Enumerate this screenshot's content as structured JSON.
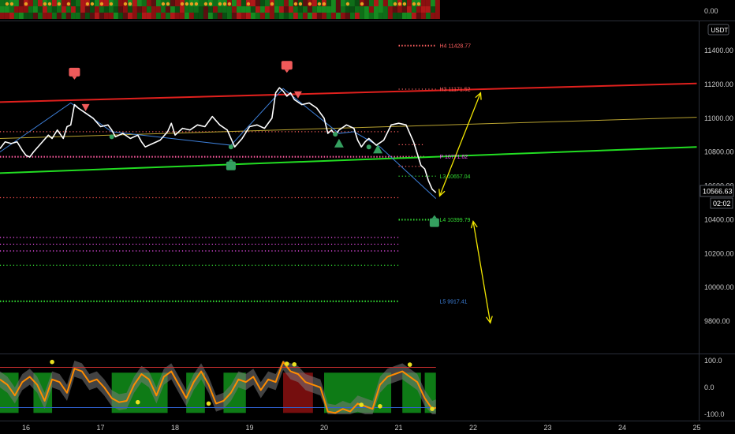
{
  "colors": {
    "background": "#000000",
    "price_line": "#ffffff",
    "zigzag": "#3d7fd9",
    "channel_upper": "#e0201d",
    "channel_lower": "#22dd22",
    "channel_mid": "#b8a230",
    "projection": "#f2e600",
    "oscillator": "#ff8c00",
    "osc_band": "#7a7a7a",
    "bull_zone": "#10901a",
    "bear_zone": "#8a1010",
    "sell_marker": "#f05a5a",
    "buy_marker": "#35a060"
  },
  "header": {
    "unit_badge": "USDT"
  },
  "current_price": {
    "value": "10566.63",
    "countdown": "02:02"
  },
  "chart_data": [
    {
      "type": "line",
      "pane": "price",
      "x_tick_labels": [
        "16",
        "17",
        "18",
        "19",
        "20",
        "21",
        "22",
        "23",
        "24",
        "25"
      ],
      "x_ticks": [
        16,
        17,
        18,
        19,
        20,
        21,
        22,
        23,
        24,
        25
      ],
      "xlim": [
        15.65,
        25.0
      ],
      "y_tick_labels": [
        "11400.00",
        "11200.00",
        "11000.00",
        "10800.00",
        "10600.00",
        "10400.00",
        "10200.00",
        "10000.00",
        "9800.00"
      ],
      "y_ticks": [
        11400,
        11200,
        11000,
        10800,
        10600,
        10400,
        10200,
        10000,
        9800
      ],
      "ylim": [
        9660,
        11550
      ],
      "grid": false,
      "series": [
        {
          "x": [
            15.65,
            15.72,
            15.8,
            15.88,
            15.95,
            16.0,
            16.05,
            16.1,
            16.2,
            16.3,
            16.35,
            16.42,
            16.5,
            16.55,
            16.6,
            16.65,
            16.7,
            16.8,
            16.9,
            17.0,
            17.1,
            17.15,
            17.2,
            17.3,
            17.4,
            17.5,
            17.55,
            17.6,
            17.7,
            17.8,
            17.9,
            17.95,
            18.0,
            18.1,
            18.2,
            18.3,
            18.4,
            18.5,
            18.6,
            18.7,
            18.75,
            18.8,
            18.9,
            19.0,
            19.1,
            19.2,
            19.3,
            19.35,
            19.4,
            19.45,
            19.5,
            19.55,
            19.6,
            19.7,
            19.8,
            19.9,
            20.0,
            20.05,
            20.1,
            20.15,
            20.2,
            20.3,
            20.4,
            20.45,
            20.5,
            20.55,
            20.6,
            20.7,
            20.8,
            20.9,
            21.0,
            21.1,
            21.2,
            21.3,
            21.35,
            21.4,
            21.45,
            21.5
          ],
          "y": [
            10820,
            10860,
            10850,
            10860,
            10810,
            10780,
            10770,
            10800,
            10850,
            10900,
            10880,
            10930,
            10880,
            10950,
            10960,
            11080,
            11060,
            11030,
            11000,
            10950,
            10960,
            10930,
            10890,
            10910,
            10880,
            10900,
            10860,
            10830,
            10850,
            10870,
            10920,
            10970,
            10900,
            10940,
            10930,
            10960,
            10950,
            11010,
            10960,
            10930,
            10880,
            10830,
            10880,
            10950,
            10960,
            10940,
            11000,
            11150,
            11180,
            11160,
            11130,
            11150,
            11110,
            11080,
            11090,
            11060,
            11000,
            10910,
            10930,
            10900,
            10930,
            10960,
            10940,
            10870,
            10830,
            10860,
            10880,
            10840,
            10870,
            10960,
            10970,
            10960,
            10860,
            10720,
            10700,
            10630,
            10580,
            10560
          ],
          "color_key": "price_line"
        }
      ],
      "lines": [
        {
          "name": "upper_channel",
          "x": [
            15.65,
            25.0
          ],
          "y": [
            11095,
            11205
          ],
          "color_key": "channel_upper"
        },
        {
          "name": "mid_channel",
          "x": [
            15.65,
            25.0
          ],
          "y": [
            10880,
            11005
          ],
          "color_key": "channel_mid"
        },
        {
          "name": "lower_channel",
          "x": [
            15.65,
            25.0
          ],
          "y": [
            10675,
            10830
          ],
          "color_key": "channel_lower"
        },
        {
          "name": "zigzag",
          "x": [
            15.65,
            16.6,
            17.15,
            18.75,
            19.45,
            20.2,
            20.4,
            20.75,
            21.5
          ],
          "y": [
            10800,
            11090,
            10920,
            10840,
            11175,
            10910,
            10920,
            10830,
            10525
          ],
          "color_key": "zigzag"
        }
      ],
      "pivot_levels": [
        {
          "label": "H4 11428.77",
          "value": 11428.77,
          "x_start": 21.0,
          "x_end": 21.5,
          "color": "#ff6060",
          "style": "plus"
        },
        {
          "label": "H3 11171.52",
          "value": 11171.52,
          "x_start": 21.0,
          "x_end": 21.5,
          "color": "#ff6060",
          "style": "dot"
        },
        {
          "label": "",
          "value": 10920,
          "x_start": 15.65,
          "x_end": 21.0,
          "color": "#ff6060",
          "style": "dot"
        },
        {
          "label": "",
          "value": 10843,
          "x_start": 21.0,
          "x_end": 21.35,
          "color": "#ff6060",
          "style": "dot"
        },
        {
          "label": "P 10771.62",
          "value": 10771.62,
          "x_start": 15.65,
          "x_end": 21.35,
          "color": "#ff5aa0",
          "style": "plus"
        },
        {
          "label": "",
          "value": 10715,
          "x_start": 21.0,
          "x_end": 21.35,
          "color": "#ff6060",
          "style": "dot"
        },
        {
          "label": "L3 10657.04",
          "value": 10657.04,
          "x_start": 21.0,
          "x_end": 21.5,
          "color": "#33dd33",
          "style": "dot"
        },
        {
          "label": "",
          "value": 10530,
          "x_start": 15.65,
          "x_end": 21.0,
          "color": "#ff5050",
          "style": "dot"
        },
        {
          "label": "L4 10399.79",
          "value": 10399.79,
          "x_start": 21.0,
          "x_end": 21.5,
          "color": "#33dd33",
          "style": "plus"
        },
        {
          "label": "",
          "value": 10295,
          "x_start": 15.65,
          "x_end": 21.0,
          "color": "#ff55ff",
          "style": "dot"
        },
        {
          "label": "",
          "value": 10255,
          "x_start": 15.65,
          "x_end": 21.0,
          "color": "#ff55ff",
          "style": "dot"
        },
        {
          "label": "",
          "value": 10215,
          "x_start": 15.65,
          "x_end": 21.0,
          "color": "#ff55ff",
          "style": "dot"
        },
        {
          "label": "",
          "value": 10130,
          "x_start": 15.65,
          "x_end": 21.0,
          "color": "#33dd33",
          "style": "dot"
        },
        {
          "label": "L5 9917.41",
          "value": 9917.41,
          "x_start": 15.65,
          "x_end": 21.0,
          "color": "#33dd33",
          "style": "plus"
        }
      ],
      "level_label_colors": {
        "H4 11428.77": "#ff6060",
        "H3 11171.52": "#ff6060",
        "P 10771.62": "#ff55ff",
        "L3 10657.04": "#33dd33",
        "L4 10399.79": "#33dd33",
        "L5 9917.41": "#3d7fd9"
      },
      "level_label_x": 21.55,
      "projections": [
        {
          "x1": 21.55,
          "y1": 10540,
          "x2": 22.1,
          "y2": 11150
        },
        {
          "x1": 21.55,
          "y1": 10540,
          "x2": 22.1,
          "y2": 11150
        },
        {
          "x1": 22.0,
          "y1": 10390,
          "x2": 22.23,
          "y2": 9790
        }
      ],
      "markers": [
        {
          "kind": "sell_box",
          "x": 16.65,
          "y": 11270
        },
        {
          "kind": "sell_tri",
          "x": 16.8,
          "y": 11060
        },
        {
          "kind": "sell_box",
          "x": 19.5,
          "y": 11310
        },
        {
          "kind": "sell_tri",
          "x": 19.65,
          "y": 11135
        },
        {
          "kind": "buy_box",
          "x": 18.75,
          "y": 10720
        },
        {
          "kind": "buy_box",
          "x": 21.48,
          "y": 10385
        },
        {
          "kind": "buy_tri",
          "x": 20.2,
          "y": 10850
        },
        {
          "kind": "buy_tri",
          "x": 20.72,
          "y": 10815
        },
        {
          "kind": "buy_dot",
          "x": 17.15,
          "y": 10890
        },
        {
          "kind": "buy_dot",
          "x": 18.75,
          "y": 10830
        },
        {
          "kind": "buy_dot",
          "x": 20.15,
          "y": 10905
        },
        {
          "kind": "buy_dot",
          "x": 20.6,
          "y": 10830
        }
      ],
      "heat_strip": {
        "x_start": 15.65,
        "x_end": 21.5
      }
    },
    {
      "type": "line",
      "pane": "oscillator",
      "y_tick_labels": [
        "100.0",
        "0.0",
        "-100.0"
      ],
      "y_ticks": [
        100,
        0,
        -100
      ],
      "ylim": [
        -110,
        110
      ],
      "bands": [
        {
          "value": 75,
          "color": "#d03030"
        },
        {
          "value": -75,
          "color": "#3060d0"
        }
      ],
      "series": [
        {
          "x": [
            15.65,
            15.75,
            15.85,
            15.95,
            16.05,
            16.15,
            16.25,
            16.35,
            16.45,
            16.55,
            16.65,
            16.75,
            16.85,
            16.95,
            17.05,
            17.15,
            17.25,
            17.35,
            17.45,
            17.55,
            17.65,
            17.75,
            17.85,
            17.95,
            18.05,
            18.15,
            18.25,
            18.35,
            18.45,
            18.55,
            18.65,
            18.75,
            18.85,
            18.95,
            19.05,
            19.15,
            19.25,
            19.35,
            19.45,
            19.55,
            19.65,
            19.75,
            19.85,
            19.95,
            20.05,
            20.15,
            20.25,
            20.35,
            20.45,
            20.55,
            20.65,
            20.75,
            20.85,
            20.95,
            21.05,
            21.15,
            21.25,
            21.35,
            21.45,
            21.5
          ],
          "y": [
            30,
            10,
            -30,
            20,
            40,
            10,
            -50,
            30,
            20,
            -20,
            70,
            60,
            20,
            30,
            0,
            -40,
            -55,
            -50,
            10,
            50,
            30,
            -30,
            40,
            60,
            10,
            -40,
            20,
            60,
            10,
            -60,
            -50,
            -20,
            30,
            20,
            40,
            -10,
            30,
            20,
            95,
            60,
            50,
            20,
            10,
            0,
            -90,
            -95,
            -80,
            -90,
            -60,
            -70,
            -80,
            10,
            40,
            50,
            60,
            40,
            20,
            -40,
            -80,
            -75
          ],
          "color_key": "oscillator"
        }
      ],
      "zones": [
        {
          "x_start": 15.65,
          "x_end": 15.9,
          "kind": "bull"
        },
        {
          "x_start": 16.1,
          "x_end": 16.35,
          "kind": "bull"
        },
        {
          "x_start": 17.15,
          "x_end": 17.9,
          "kind": "bull"
        },
        {
          "x_start": 18.15,
          "x_end": 18.4,
          "kind": "bull"
        },
        {
          "x_start": 18.65,
          "x_end": 18.95,
          "kind": "bull"
        },
        {
          "x_start": 19.45,
          "x_end": 19.85,
          "kind": "bear"
        },
        {
          "x_start": 20.0,
          "x_end": 20.9,
          "kind": "bull"
        },
        {
          "x_start": 21.05,
          "x_end": 21.3,
          "kind": "bull"
        },
        {
          "x_start": 21.35,
          "x_end": 21.5,
          "kind": "bull"
        }
      ],
      "dots": [
        {
          "x": 16.35,
          "y": 95
        },
        {
          "x": 17.5,
          "y": -55
        },
        {
          "x": 18.45,
          "y": -60
        },
        {
          "x": 19.5,
          "y": 88
        },
        {
          "x": 19.6,
          "y": 86
        },
        {
          "x": 20.5,
          "y": -65
        },
        {
          "x": 20.75,
          "y": -70
        },
        {
          "x": 21.15,
          "y": 85
        },
        {
          "x": 21.45,
          "y": -80
        }
      ]
    }
  ]
}
